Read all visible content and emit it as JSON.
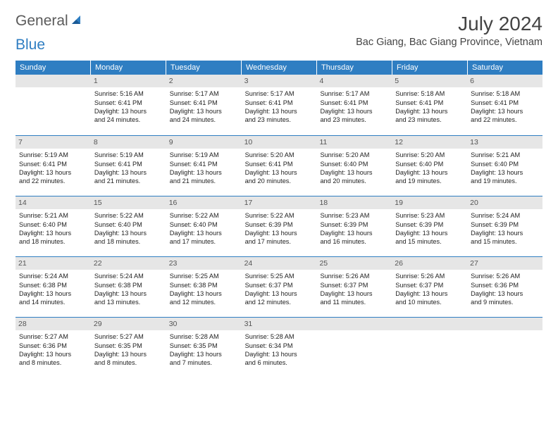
{
  "logo": {
    "word1": "General",
    "word2": "Blue"
  },
  "title": "July 2024",
  "location": "Bac Giang, Bac Giang Province, Vietnam",
  "colors": {
    "header_bg": "#2f7ec2",
    "daynum_bg": "#e6e6e6",
    "border": "#2f7ec2",
    "text": "#333333"
  },
  "weekdays": [
    "Sunday",
    "Monday",
    "Tuesday",
    "Wednesday",
    "Thursday",
    "Friday",
    "Saturday"
  ],
  "weeks": [
    [
      null,
      {
        "n": "1",
        "sr": "5:16 AM",
        "ss": "6:41 PM",
        "dh": "13",
        "dm": "24"
      },
      {
        "n": "2",
        "sr": "5:17 AM",
        "ss": "6:41 PM",
        "dh": "13",
        "dm": "24"
      },
      {
        "n": "3",
        "sr": "5:17 AM",
        "ss": "6:41 PM",
        "dh": "13",
        "dm": "23"
      },
      {
        "n": "4",
        "sr": "5:17 AM",
        "ss": "6:41 PM",
        "dh": "13",
        "dm": "23"
      },
      {
        "n": "5",
        "sr": "5:18 AM",
        "ss": "6:41 PM",
        "dh": "13",
        "dm": "23"
      },
      {
        "n": "6",
        "sr": "5:18 AM",
        "ss": "6:41 PM",
        "dh": "13",
        "dm": "22"
      }
    ],
    [
      {
        "n": "7",
        "sr": "5:19 AM",
        "ss": "6:41 PM",
        "dh": "13",
        "dm": "22"
      },
      {
        "n": "8",
        "sr": "5:19 AM",
        "ss": "6:41 PM",
        "dh": "13",
        "dm": "21"
      },
      {
        "n": "9",
        "sr": "5:19 AM",
        "ss": "6:41 PM",
        "dh": "13",
        "dm": "21"
      },
      {
        "n": "10",
        "sr": "5:20 AM",
        "ss": "6:41 PM",
        "dh": "13",
        "dm": "20"
      },
      {
        "n": "11",
        "sr": "5:20 AM",
        "ss": "6:40 PM",
        "dh": "13",
        "dm": "20"
      },
      {
        "n": "12",
        "sr": "5:20 AM",
        "ss": "6:40 PM",
        "dh": "13",
        "dm": "19"
      },
      {
        "n": "13",
        "sr": "5:21 AM",
        "ss": "6:40 PM",
        "dh": "13",
        "dm": "19"
      }
    ],
    [
      {
        "n": "14",
        "sr": "5:21 AM",
        "ss": "6:40 PM",
        "dh": "13",
        "dm": "18"
      },
      {
        "n": "15",
        "sr": "5:22 AM",
        "ss": "6:40 PM",
        "dh": "13",
        "dm": "18"
      },
      {
        "n": "16",
        "sr": "5:22 AM",
        "ss": "6:40 PM",
        "dh": "13",
        "dm": "17"
      },
      {
        "n": "17",
        "sr": "5:22 AM",
        "ss": "6:39 PM",
        "dh": "13",
        "dm": "17"
      },
      {
        "n": "18",
        "sr": "5:23 AM",
        "ss": "6:39 PM",
        "dh": "13",
        "dm": "16"
      },
      {
        "n": "19",
        "sr": "5:23 AM",
        "ss": "6:39 PM",
        "dh": "13",
        "dm": "15"
      },
      {
        "n": "20",
        "sr": "5:24 AM",
        "ss": "6:39 PM",
        "dh": "13",
        "dm": "15"
      }
    ],
    [
      {
        "n": "21",
        "sr": "5:24 AM",
        "ss": "6:38 PM",
        "dh": "13",
        "dm": "14"
      },
      {
        "n": "22",
        "sr": "5:24 AM",
        "ss": "6:38 PM",
        "dh": "13",
        "dm": "13"
      },
      {
        "n": "23",
        "sr": "5:25 AM",
        "ss": "6:38 PM",
        "dh": "13",
        "dm": "12"
      },
      {
        "n": "24",
        "sr": "5:25 AM",
        "ss": "6:37 PM",
        "dh": "13",
        "dm": "12"
      },
      {
        "n": "25",
        "sr": "5:26 AM",
        "ss": "6:37 PM",
        "dh": "13",
        "dm": "11"
      },
      {
        "n": "26",
        "sr": "5:26 AM",
        "ss": "6:37 PM",
        "dh": "13",
        "dm": "10"
      },
      {
        "n": "27",
        "sr": "5:26 AM",
        "ss": "6:36 PM",
        "dh": "13",
        "dm": "9"
      }
    ],
    [
      {
        "n": "28",
        "sr": "5:27 AM",
        "ss": "6:36 PM",
        "dh": "13",
        "dm": "8"
      },
      {
        "n": "29",
        "sr": "5:27 AM",
        "ss": "6:35 PM",
        "dh": "13",
        "dm": "8"
      },
      {
        "n": "30",
        "sr": "5:28 AM",
        "ss": "6:35 PM",
        "dh": "13",
        "dm": "7"
      },
      {
        "n": "31",
        "sr": "5:28 AM",
        "ss": "6:34 PM",
        "dh": "13",
        "dm": "6"
      },
      null,
      null,
      null
    ]
  ]
}
